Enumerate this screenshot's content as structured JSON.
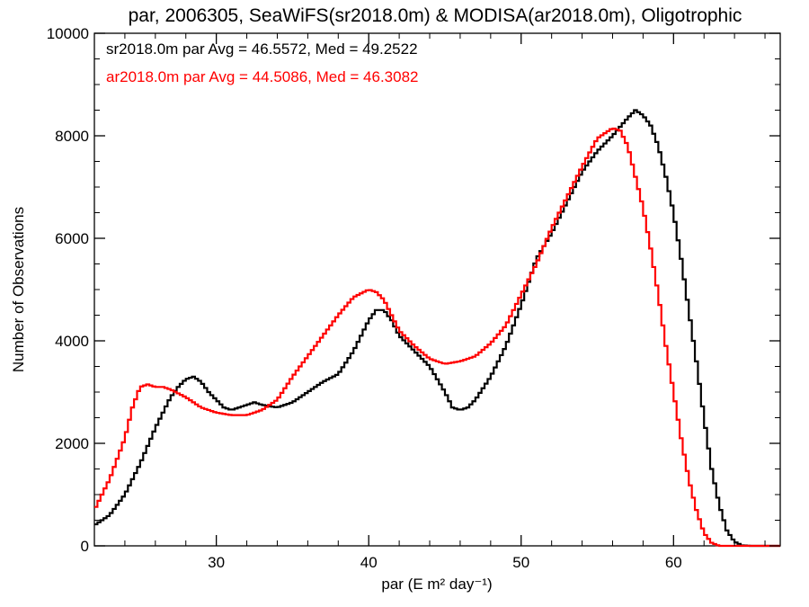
{
  "chart_data": {
    "type": "line",
    "step": true,
    "title": "par, 2006305, SeaWiFS(sr2018.0m) & MODISA(ar2018.0m), Oligotrophic",
    "xlabel": "par (E m² day⁻¹)",
    "ylabel": "Number of Observations",
    "xlim": [
      22,
      67
    ],
    "ylim": [
      0,
      10000
    ],
    "xticks": [
      30,
      40,
      50,
      60
    ],
    "yticks": [
      0,
      2000,
      4000,
      6000,
      8000,
      10000
    ],
    "grid": false,
    "annotations": [
      {
        "text": "sr2018.0m par Avg = 46.5572, Med = 49.2522",
        "color": "#000000"
      },
      {
        "text": "ar2018.0m par Avg = 44.5086, Med = 46.3082",
        "color": "#ff0000"
      }
    ],
    "series": [
      {
        "color": "#000000",
        "points": [
          [
            22,
            400
          ],
          [
            23,
            600
          ],
          [
            24,
            1000
          ],
          [
            25,
            1600
          ],
          [
            26,
            2300
          ],
          [
            27,
            2900
          ],
          [
            27.5,
            3100
          ],
          [
            28,
            3250
          ],
          [
            28.5,
            3300
          ],
          [
            29,
            3200
          ],
          [
            29.5,
            3000
          ],
          [
            30,
            2850
          ],
          [
            30.5,
            2700
          ],
          [
            31,
            2650
          ],
          [
            31.5,
            2700
          ],
          [
            32,
            2750
          ],
          [
            32.5,
            2800
          ],
          [
            33,
            2750
          ],
          [
            34,
            2700
          ],
          [
            35,
            2800
          ],
          [
            36,
            3000
          ],
          [
            37,
            3200
          ],
          [
            38,
            3350
          ],
          [
            39,
            3800
          ],
          [
            40,
            4400
          ],
          [
            40.5,
            4600
          ],
          [
            41,
            4600
          ],
          [
            41.5,
            4400
          ],
          [
            42,
            4100
          ],
          [
            43,
            3800
          ],
          [
            44,
            3500
          ],
          [
            45,
            3000
          ],
          [
            45.5,
            2700
          ],
          [
            46,
            2650
          ],
          [
            46.5,
            2700
          ],
          [
            47,
            2850
          ],
          [
            48,
            3300
          ],
          [
            49,
            3900
          ],
          [
            50,
            4700
          ],
          [
            51,
            5600
          ],
          [
            52,
            6100
          ],
          [
            53,
            6700
          ],
          [
            54,
            7300
          ],
          [
            55,
            7700
          ],
          [
            56,
            8000
          ],
          [
            57,
            8350
          ],
          [
            57.5,
            8500
          ],
          [
            58,
            8400
          ],
          [
            58.5,
            8200
          ],
          [
            59,
            7800
          ],
          [
            59.5,
            7200
          ],
          [
            60,
            6500
          ],
          [
            60.5,
            5600
          ],
          [
            61,
            4600
          ],
          [
            61.5,
            3600
          ],
          [
            62,
            2500
          ],
          [
            62.5,
            1500
          ],
          [
            63,
            800
          ],
          [
            63.5,
            300
          ],
          [
            64,
            80
          ],
          [
            64.5,
            10
          ],
          [
            65,
            0
          ],
          [
            67,
            0
          ]
        ]
      },
      {
        "color": "#ff0000",
        "points": [
          [
            22,
            700
          ],
          [
            23,
            1300
          ],
          [
            24,
            2100
          ],
          [
            24.5,
            2700
          ],
          [
            25,
            3100
          ],
          [
            25.5,
            3150
          ],
          [
            26,
            3100
          ],
          [
            26.5,
            3100
          ],
          [
            27,
            3050
          ],
          [
            28,
            2900
          ],
          [
            29,
            2700
          ],
          [
            30,
            2600
          ],
          [
            31,
            2550
          ],
          [
            32,
            2550
          ],
          [
            33,
            2650
          ],
          [
            34,
            2850
          ],
          [
            35,
            3300
          ],
          [
            36,
            3700
          ],
          [
            37,
            4100
          ],
          [
            38,
            4500
          ],
          [
            39,
            4850
          ],
          [
            40,
            5000
          ],
          [
            40.5,
            4950
          ],
          [
            41,
            4800
          ],
          [
            41.5,
            4500
          ],
          [
            42,
            4200
          ],
          [
            43,
            3900
          ],
          [
            44,
            3650
          ],
          [
            45,
            3550
          ],
          [
            46,
            3600
          ],
          [
            47,
            3700
          ],
          [
            48,
            3950
          ],
          [
            49,
            4300
          ],
          [
            50,
            4900
          ],
          [
            51,
            5500
          ],
          [
            52,
            6200
          ],
          [
            53,
            6800
          ],
          [
            54,
            7400
          ],
          [
            55,
            7950
          ],
          [
            56,
            8150
          ],
          [
            56.5,
            8100
          ],
          [
            57,
            7800
          ],
          [
            57.5,
            7200
          ],
          [
            58,
            6600
          ],
          [
            58.5,
            5800
          ],
          [
            59,
            4900
          ],
          [
            59.5,
            3900
          ],
          [
            60,
            3000
          ],
          [
            60.5,
            2100
          ],
          [
            61,
            1300
          ],
          [
            61.5,
            700
          ],
          [
            62,
            250
          ],
          [
            62.5,
            60
          ],
          [
            63,
            0
          ],
          [
            67,
            0
          ]
        ]
      }
    ]
  }
}
